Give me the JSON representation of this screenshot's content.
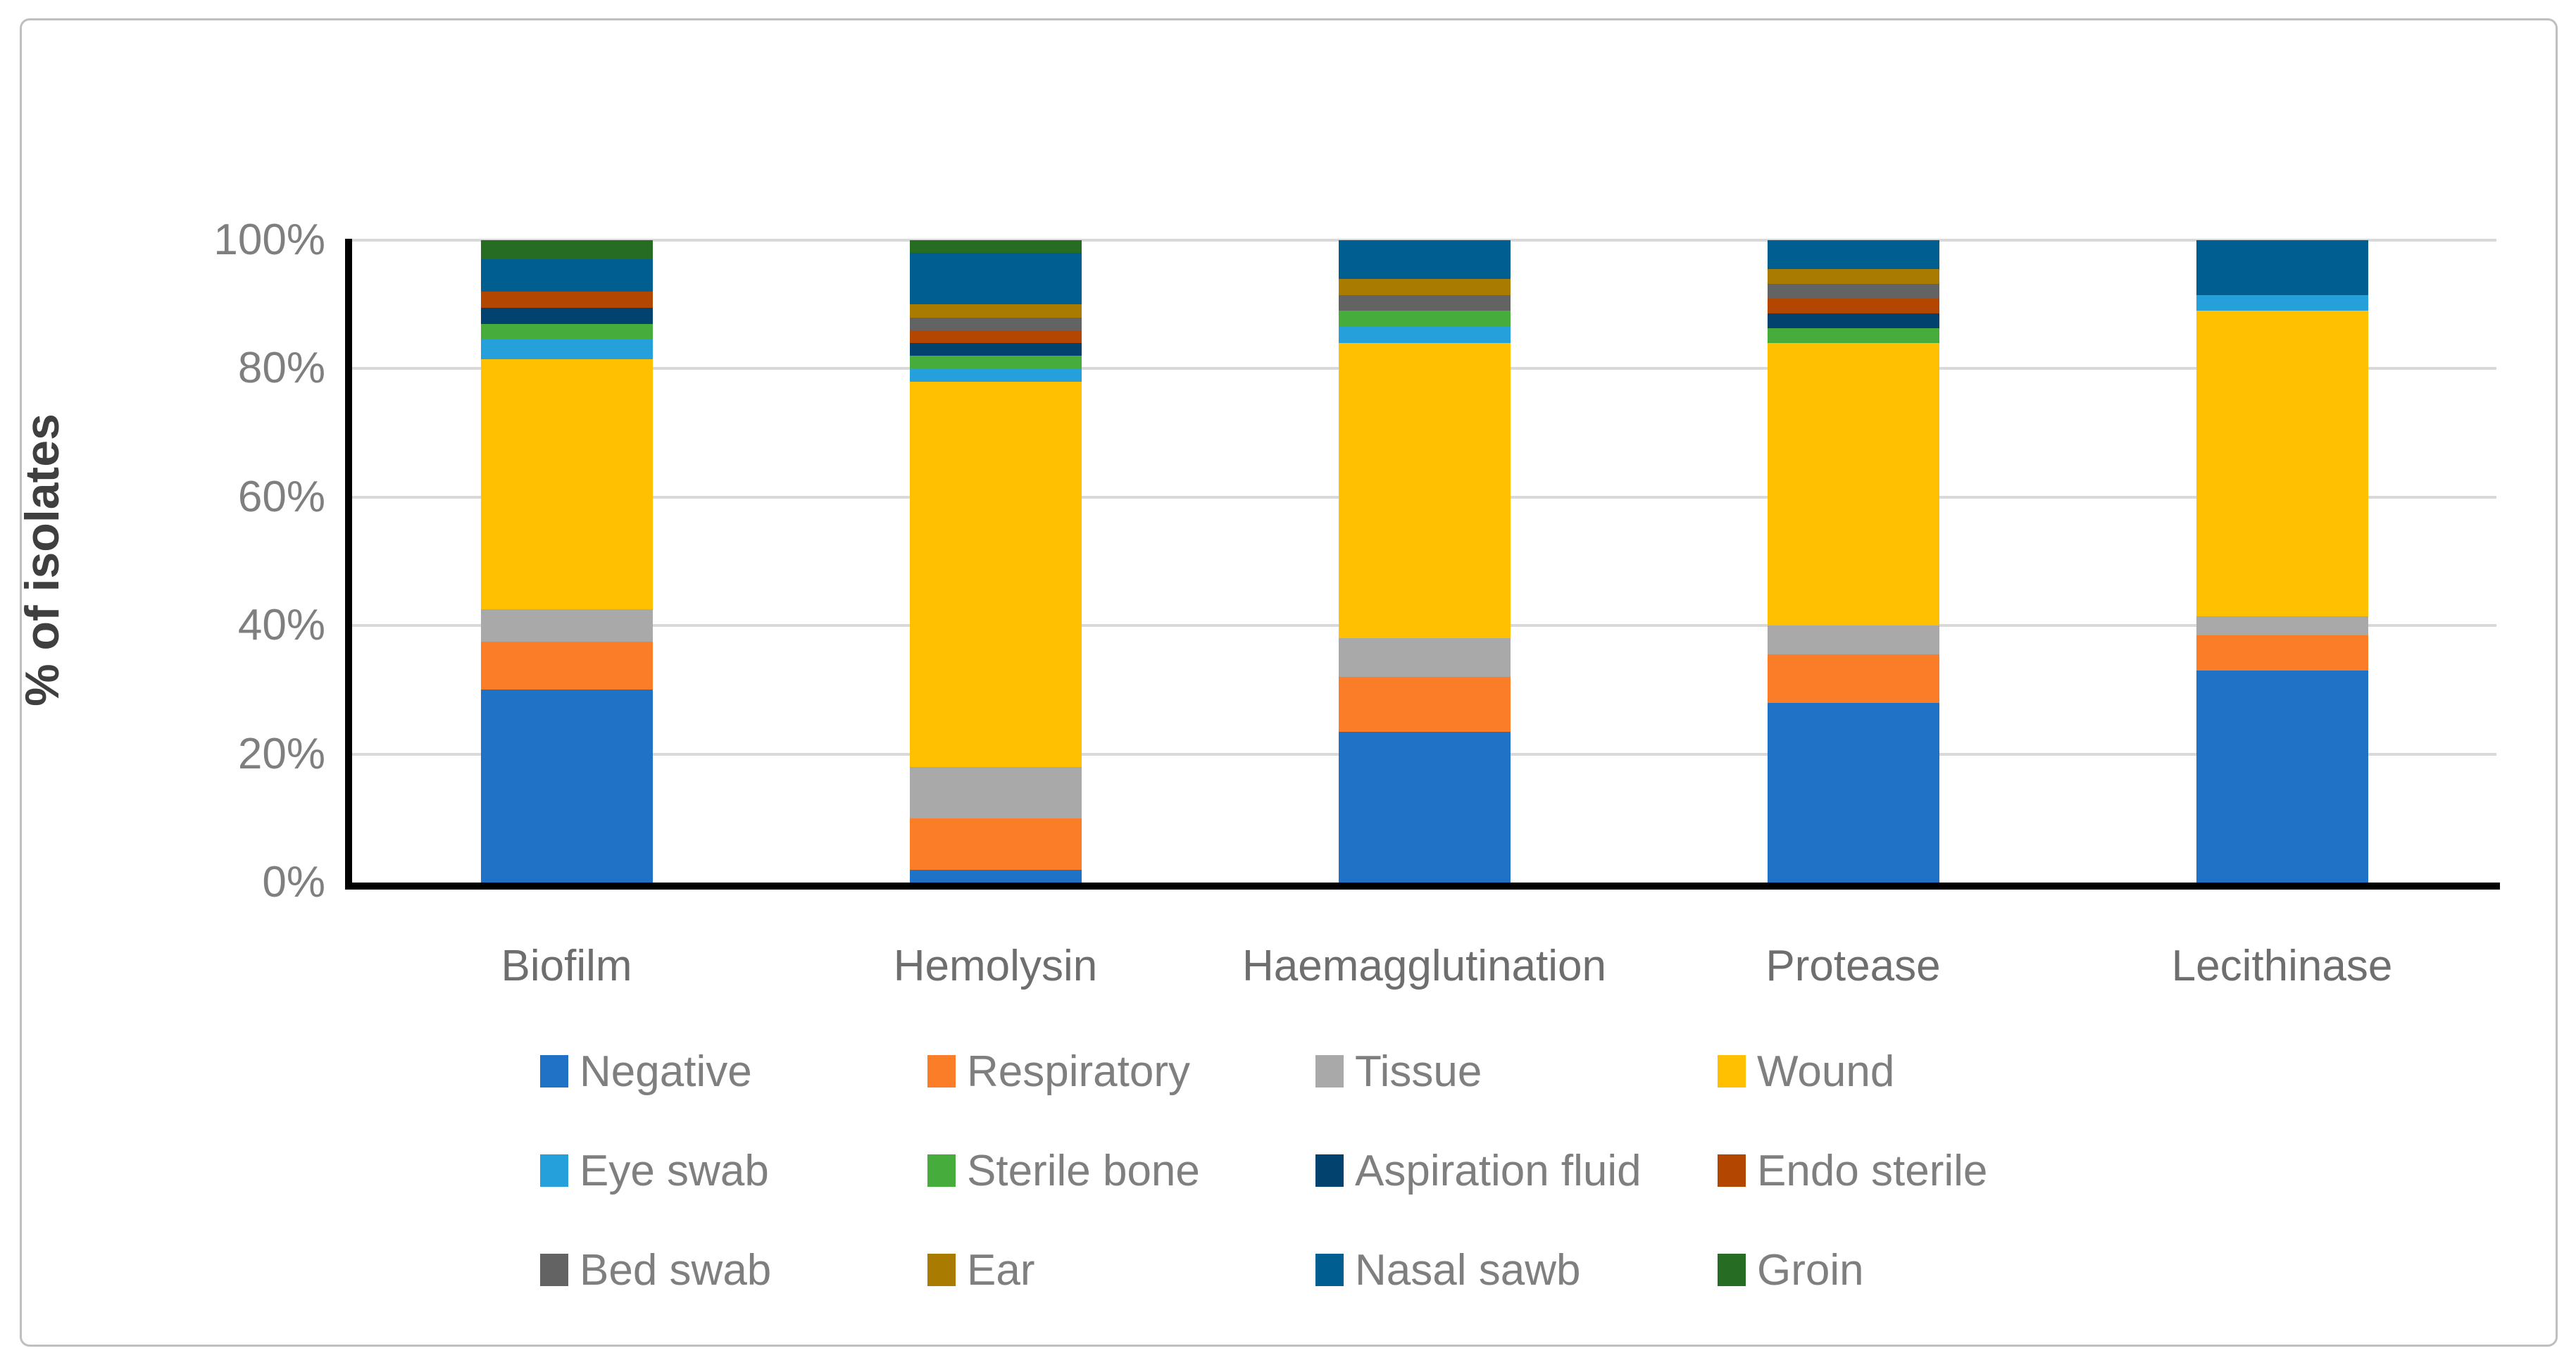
{
  "figure": {
    "background": "#FFFFFF",
    "border_color": "#BFBFBF"
  },
  "chart_data": {
    "type": "bar",
    "subtype": "100-percent-stacked-column",
    "title": "",
    "xlabel": "",
    "ylabel": "% of isolates",
    "ylim": [
      0,
      100
    ],
    "grid": "horizontal",
    "gridline_color": "#D9D9D9",
    "axis_color": "#000000",
    "legend_position": "bottom",
    "y_ticks": [
      {
        "value": 100,
        "label": "100%"
      },
      {
        "value": 80,
        "label": "80%"
      },
      {
        "value": 60,
        "label": "60%"
      },
      {
        "value": 40,
        "label": "40%"
      },
      {
        "value": 20,
        "label": "20%"
      },
      {
        "value": 0,
        "label": "0%"
      }
    ],
    "categories": [
      "Biofilm",
      "Hemolysin",
      "Haemagglutination",
      "Protease",
      "Lecithinase"
    ],
    "series": [
      {
        "name": "Negative",
        "color": "#1F72C6",
        "values": [
          30,
          2,
          23.5,
          28,
          33
        ]
      },
      {
        "name": "Respiratory",
        "color": "#FC7D28",
        "values": [
          7.5,
          8,
          8.5,
          7.5,
          5.5
        ]
      },
      {
        "name": "Tissue",
        "color": "#A9A9A9",
        "values": [
          5,
          8,
          6,
          4.5,
          3
        ]
      },
      {
        "name": "Wound",
        "color": "#FEC001",
        "values": [
          39,
          60,
          46,
          44,
          47.5
        ]
      },
      {
        "name": "Eye swab",
        "color": "#26A0DA",
        "values": [
          3,
          2,
          2.5,
          0,
          2.5
        ]
      },
      {
        "name": "Sterile bone",
        "color": "#46AC3C",
        "values": [
          2.5,
          2,
          2.5,
          2.3,
          0
        ]
      },
      {
        "name": "Aspiration fluid",
        "color": "#02426F",
        "values": [
          2.5,
          2,
          0,
          2.3,
          0
        ]
      },
      {
        "name": "Endo sterile",
        "color": "#B34702",
        "values": [
          2.5,
          2,
          0,
          2.3,
          0
        ]
      },
      {
        "name": "Bed swab",
        "color": "#636363",
        "values": [
          0,
          2,
          2.5,
          2.3,
          0
        ]
      },
      {
        "name": "Ear",
        "color": "#A97B00",
        "values": [
          0,
          2,
          2.5,
          2.3,
          0
        ]
      },
      {
        "name": "Nasal sawb",
        "color": "#005E90",
        "values": [
          5,
          8,
          6,
          4.5,
          8.5
        ]
      },
      {
        "name": "Groin",
        "color": "#266C23",
        "values": [
          3,
          2,
          0,
          0,
          0
        ]
      }
    ]
  }
}
